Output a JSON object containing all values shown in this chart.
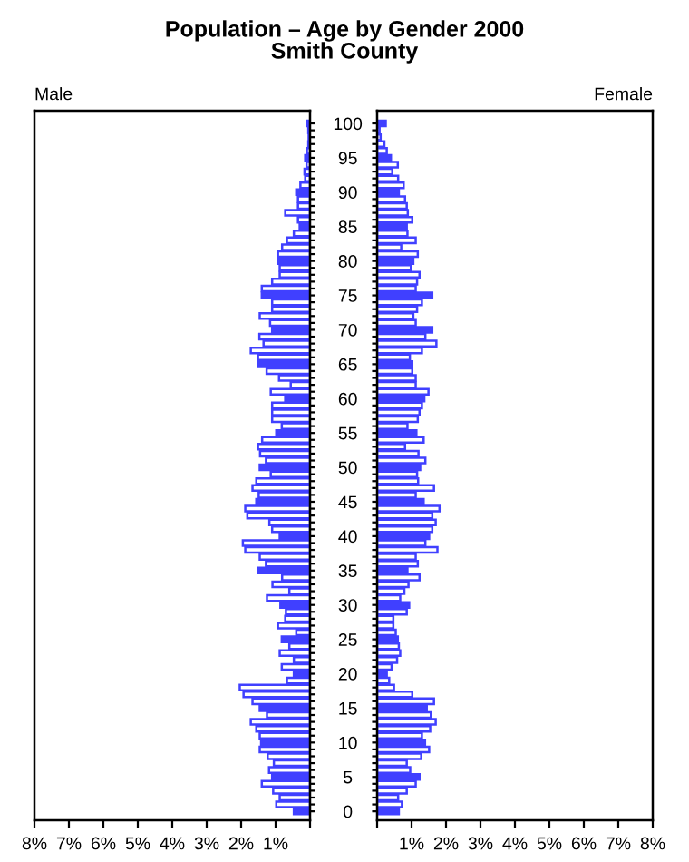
{
  "chart_data": [
    {
      "type": "bar",
      "orientation": "horizontal",
      "title": "Population – Age by Gender 2000",
      "subtitle": "Smith County",
      "annotations": [
        "Male"
      ],
      "categories": [
        "100",
        null,
        null,
        null,
        null,
        "95",
        null,
        null,
        null,
        null,
        "90",
        null,
        null,
        null,
        null,
        "85",
        null,
        null,
        null,
        null,
        "80",
        null,
        null,
        null,
        null,
        "75",
        null,
        null,
        null,
        null,
        "70",
        null,
        null,
        null,
        null,
        "65",
        null,
        null,
        null,
        null,
        "60",
        null,
        null,
        null,
        null,
        "55",
        null,
        null,
        null,
        null,
        "50",
        null,
        null,
        null,
        null,
        "45",
        null,
        null,
        null,
        null,
        "40",
        null,
        null,
        null,
        null,
        "35",
        null,
        null,
        null,
        null,
        "30",
        null,
        null,
        null,
        null,
        "25",
        null,
        null,
        null,
        null,
        "20",
        null,
        null,
        null,
        null,
        "15",
        null,
        null,
        null,
        null,
        "10",
        null,
        null,
        null,
        null,
        "5",
        null,
        null,
        null,
        null,
        "0"
      ],
      "series": [
        {
          "color": "#4040ff",
          "colors": [
            "#4040ff",
            "#ffffff",
            "#ffffff",
            "#ffffff",
            "#ffffff",
            "#4040ff",
            "#ffffff",
            "#ffffff",
            "#ffffff",
            "#ffffff",
            "#4040ff",
            "#ffffff",
            "#ffffff",
            "#ffffff",
            "#ffffff",
            "#4040ff",
            "#ffffff",
            "#ffffff",
            "#ffffff",
            "#ffffff",
            "#4040ff",
            "#ffffff",
            "#ffffff",
            "#ffffff",
            "#ffffff",
            "#4040ff",
            "#ffffff",
            "#ffffff",
            "#ffffff",
            "#ffffff",
            "#4040ff",
            "#ffffff",
            "#ffffff",
            "#ffffff",
            "#ffffff",
            "#4040ff",
            "#ffffff",
            "#ffffff",
            "#ffffff",
            "#ffffff",
            "#4040ff",
            "#ffffff",
            "#ffffff",
            "#ffffff",
            "#ffffff",
            "#4040ff",
            "#ffffff",
            "#ffffff",
            "#ffffff",
            "#ffffff",
            "#4040ff",
            "#ffffff",
            "#ffffff",
            "#ffffff",
            "#ffffff",
            "#4040ff",
            "#ffffff",
            "#ffffff",
            "#ffffff",
            "#ffffff",
            "#4040ff",
            "#ffffff",
            "#ffffff",
            "#ffffff",
            "#ffffff",
            "#4040ff",
            "#ffffff",
            "#ffffff",
            "#ffffff",
            "#ffffff",
            "#4040ff",
            "#ffffff",
            "#ffffff",
            "#ffffff",
            "#ffffff",
            "#4040ff",
            "#ffffff",
            "#ffffff",
            "#ffffff",
            "#ffffff",
            "#4040ff",
            "#ffffff",
            "#ffffff",
            "#ffffff",
            "#ffffff",
            "#4040ff",
            "#ffffff",
            "#ffffff",
            "#ffffff",
            "#ffffff",
            "#4040ff",
            "#ffffff",
            "#ffffff",
            "#ffffff",
            "#ffffff",
            "#4040ff",
            "#ffffff",
            "#ffffff",
            "#ffffff",
            "#ffffff",
            "#4040ff"
          ],
          "values": [
            0.09,
            0.05,
            0.04,
            0.05,
            0.09,
            0.14,
            0.1,
            0.16,
            0.14,
            0.28,
            0.4,
            0.35,
            0.35,
            0.72,
            0.35,
            0.3,
            0.47,
            0.67,
            0.81,
            0.93,
            0.93,
            0.88,
            0.88,
            1.1,
            1.4,
            1.4,
            1.1,
            1.1,
            1.46,
            1.16,
            1.1,
            1.47,
            1.35,
            1.72,
            1.51,
            1.51,
            1.26,
            0.9,
            0.56,
            1.14,
            0.72,
            1.1,
            1.1,
            1.1,
            0.82,
            0.98,
            1.39,
            1.51,
            1.45,
            1.28,
            1.46,
            1.14,
            1.56,
            1.67,
            1.49,
            1.56,
            1.88,
            1.82,
            1.18,
            1.1,
            0.88,
            1.95,
            1.88,
            1.46,
            1.28,
            1.51,
            0.81,
            1.09,
            0.6,
            1.25,
            0.86,
            0.7,
            0.72,
            0.93,
            0.4,
            0.82,
            0.6,
            0.88,
            0.47,
            0.82,
            0.47,
            0.67,
            2.04,
            1.93,
            1.67,
            1.46,
            1.25,
            1.72,
            1.56,
            1.46,
            1.42,
            1.46,
            1.23,
            1.05,
            1.19,
            1.1,
            1.4,
            1.07,
            0.88,
            0.98,
            0.47
          ]
        }
      ],
      "xlim": [
        8,
        0
      ],
      "xticks": [
        {
          "value": 8,
          "label": "8%"
        },
        {
          "value": 7,
          "label": "7%"
        },
        {
          "value": 6,
          "label": "6%"
        },
        {
          "value": 5,
          "label": "5%"
        },
        {
          "value": 4,
          "label": "4%"
        },
        {
          "value": 3,
          "label": "3%"
        },
        {
          "value": 2,
          "label": "2%"
        },
        {
          "value": 1,
          "label": "1%"
        },
        {
          "value": 0,
          "label": null
        }
      ],
      "grid": false
    },
    {
      "type": "bar",
      "orientation": "horizontal",
      "annotations": [
        "Female"
      ],
      "tick_labels": "x",
      "categories": [
        "100",
        null,
        null,
        null,
        null,
        "95",
        null,
        null,
        null,
        null,
        "90",
        null,
        null,
        null,
        null,
        "85",
        null,
        null,
        null,
        null,
        "80",
        null,
        null,
        null,
        null,
        "75",
        null,
        null,
        null,
        null,
        "70",
        null,
        null,
        null,
        null,
        "65",
        null,
        null,
        null,
        null,
        "60",
        null,
        null,
        null,
        null,
        "55",
        null,
        null,
        null,
        null,
        "50",
        null,
        null,
        null,
        null,
        "45",
        null,
        null,
        null,
        null,
        "40",
        null,
        null,
        null,
        null,
        "35",
        null,
        null,
        null,
        null,
        "30",
        null,
        null,
        null,
        null,
        "25",
        null,
        null,
        null,
        null,
        "20",
        null,
        null,
        null,
        null,
        "15",
        null,
        null,
        null,
        null,
        "10",
        null,
        null,
        null,
        null,
        "5",
        null,
        null,
        null,
        null,
        "0"
      ],
      "series": [
        {
          "color": "#4040ff",
          "colors": [
            "#4040ff",
            "#ffffff",
            "#ffffff",
            "#ffffff",
            "#ffffff",
            "#4040ff",
            "#ffffff",
            "#ffffff",
            "#ffffff",
            "#ffffff",
            "#4040ff",
            "#ffffff",
            "#ffffff",
            "#ffffff",
            "#ffffff",
            "#4040ff",
            "#ffffff",
            "#ffffff",
            "#ffffff",
            "#ffffff",
            "#4040ff",
            "#ffffff",
            "#ffffff",
            "#ffffff",
            "#ffffff",
            "#4040ff",
            "#ffffff",
            "#ffffff",
            "#ffffff",
            "#ffffff",
            "#4040ff",
            "#ffffff",
            "#ffffff",
            "#ffffff",
            "#ffffff",
            "#4040ff",
            "#ffffff",
            "#ffffff",
            "#ffffff",
            "#ffffff",
            "#4040ff",
            "#ffffff",
            "#ffffff",
            "#ffffff",
            "#ffffff",
            "#4040ff",
            "#ffffff",
            "#ffffff",
            "#ffffff",
            "#ffffff",
            "#4040ff",
            "#ffffff",
            "#ffffff",
            "#ffffff",
            "#ffffff",
            "#4040ff",
            "#ffffff",
            "#ffffff",
            "#ffffff",
            "#ffffff",
            "#4040ff",
            "#ffffff",
            "#ffffff",
            "#ffffff",
            "#ffffff",
            "#4040ff",
            "#ffffff",
            "#ffffff",
            "#ffffff",
            "#ffffff",
            "#4040ff",
            "#ffffff",
            "#ffffff",
            "#ffffff",
            "#ffffff",
            "#4040ff",
            "#ffffff",
            "#ffffff",
            "#ffffff",
            "#ffffff",
            "#4040ff",
            "#ffffff",
            "#ffffff",
            "#ffffff",
            "#ffffff",
            "#4040ff",
            "#ffffff",
            "#ffffff",
            "#ffffff",
            "#ffffff",
            "#4040ff",
            "#ffffff",
            "#ffffff",
            "#ffffff",
            "#ffffff",
            "#4040ff",
            "#ffffff",
            "#ffffff",
            "#ffffff",
            "#ffffff",
            "#4040ff"
          ],
          "values": [
            0.25,
            0.07,
            0.1,
            0.21,
            0.28,
            0.4,
            0.6,
            0.44,
            0.61,
            0.77,
            0.63,
            0.81,
            0.86,
            0.89,
            1.02,
            0.86,
            0.88,
            1.12,
            0.7,
            1.18,
            1.05,
            0.98,
            1.23,
            1.16,
            1.12,
            1.6,
            1.3,
            1.16,
            1.05,
            1.12,
            1.6,
            1.4,
            1.72,
            1.3,
            0.95,
            1.02,
            1.02,
            1.12,
            1.12,
            1.49,
            1.37,
            1.3,
            1.23,
            1.18,
            0.88,
            1.14,
            1.35,
            0.81,
            1.2,
            1.4,
            1.25,
            1.16,
            1.19,
            1.65,
            1.12,
            1.35,
            1.81,
            1.6,
            1.7,
            1.6,
            1.51,
            1.4,
            1.75,
            1.12,
            1.18,
            0.88,
            1.23,
            0.91,
            0.79,
            0.67,
            0.93,
            0.86,
            0.47,
            0.47,
            0.54,
            0.6,
            0.63,
            0.67,
            0.58,
            0.42,
            0.28,
            0.35,
            0.49,
            1.02,
            1.65,
            1.44,
            1.56,
            1.7,
            1.54,
            1.3,
            1.39,
            1.51,
            1.28,
            0.86,
            0.96,
            1.23,
            1.12,
            0.86,
            0.61,
            0.72,
            0.63
          ]
        }
      ],
      "xlim": [
        0,
        8
      ],
      "xticks": [
        {
          "value": 0,
          "label": null
        },
        {
          "value": 1,
          "label": "1%"
        },
        {
          "value": 2,
          "label": "2%"
        },
        {
          "value": 3,
          "label": "3%"
        },
        {
          "value": 4,
          "label": "4%"
        },
        {
          "value": 5,
          "label": "5%"
        },
        {
          "value": 6,
          "label": "6%"
        },
        {
          "value": 7,
          "label": "7%"
        },
        {
          "value": 8,
          "label": "8%"
        }
      ],
      "grid": false
    }
  ]
}
